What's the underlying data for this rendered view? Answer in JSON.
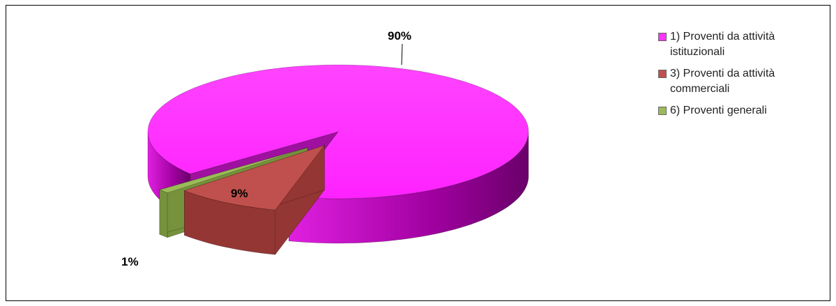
{
  "chart_data": {
    "type": "pie",
    "three_d": true,
    "exploded": true,
    "categories": [
      "1) Proventi da attività istituzionali",
      "3) Proventi da attività commerciali",
      "6) Proventi generali"
    ],
    "values": [
      90,
      9,
      1
    ],
    "data_labels": [
      "90%",
      "9%",
      "1%"
    ],
    "colors": [
      "#ff33ff",
      "#c0504d",
      "#9bbb59"
    ],
    "side_colors": [
      "#b000b0",
      "#943634",
      "#76923c"
    ],
    "legend": {
      "position": "right",
      "entries": [
        "1) Proventi da attività istituzionali",
        "3) Proventi da attività commerciali",
        "6) Proventi generali"
      ]
    },
    "title": ""
  }
}
